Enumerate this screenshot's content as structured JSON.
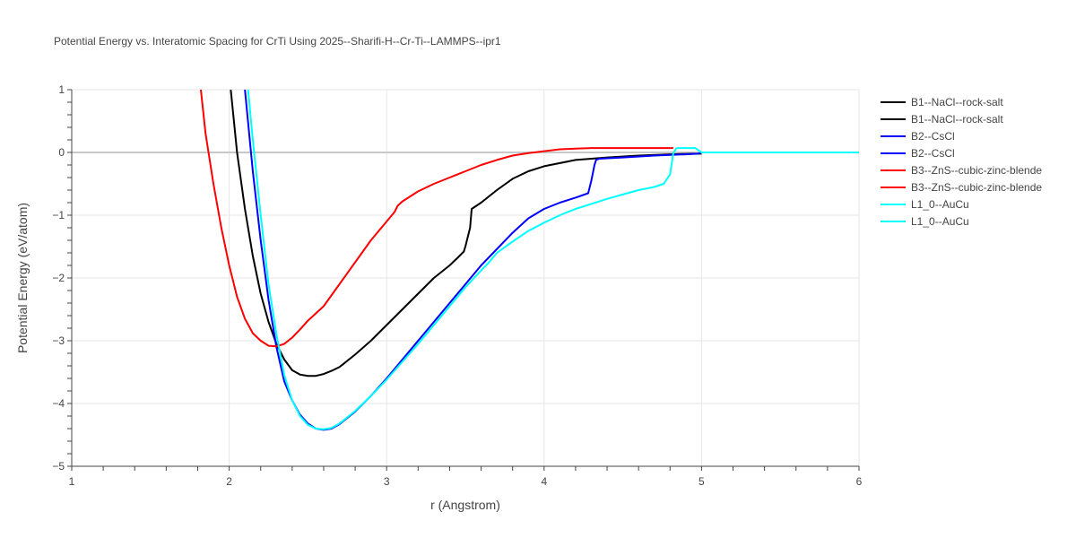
{
  "chart_data": {
    "type": "line",
    "title": "Potential Energy vs. Interatomic Spacing for CrTi Using 2025--Sharifi-H--Cr-Ti--LAMMPS--ipr1",
    "xlabel": "r (Angstrom)",
    "ylabel": "Potential Energy (eV/atom)",
    "xlim": [
      1,
      6
    ],
    "ylim": [
      -5,
      1
    ],
    "xticks": [
      1,
      2,
      3,
      4,
      5,
      6
    ],
    "yticks": [
      1,
      0,
      -1,
      -2,
      -3,
      -4,
      -5
    ],
    "xtick_labels": [
      "1",
      "2",
      "3",
      "4",
      "5",
      "6"
    ],
    "ytick_labels": [
      "1",
      "0",
      "−1",
      "−2",
      "−3",
      "−4",
      "−5"
    ],
    "grid": true,
    "legend_position": "right",
    "series": [
      {
        "name": "B1--NaCl--rock-salt",
        "color": "#000000",
        "x": [
          2.01,
          2.05,
          2.1,
          2.15,
          2.2,
          2.25,
          2.3,
          2.35,
          2.4,
          2.45,
          2.5,
          2.55,
          2.6,
          2.65,
          2.7,
          2.8,
          2.9,
          3.0,
          3.1,
          3.2,
          3.3,
          3.4,
          3.45,
          3.49,
          3.5,
          3.53,
          3.54,
          3.6,
          3.7,
          3.8,
          3.9,
          4.0,
          4.2,
          4.4,
          4.6,
          4.8,
          4.95
        ],
        "y": [
          1.0,
          0.0,
          -0.9,
          -1.65,
          -2.25,
          -2.7,
          -3.05,
          -3.3,
          -3.47,
          -3.54,
          -3.56,
          -3.56,
          -3.53,
          -3.48,
          -3.42,
          -3.22,
          -3.0,
          -2.75,
          -2.5,
          -2.25,
          -2.0,
          -1.8,
          -1.68,
          -1.58,
          -1.5,
          -1.2,
          -0.9,
          -0.8,
          -0.6,
          -0.42,
          -0.3,
          -0.22,
          -0.12,
          -0.08,
          -0.05,
          -0.03,
          -0.02
        ]
      },
      {
        "name": "B1--NaCl--rock-salt",
        "color": "#000000",
        "x": [
          4.95,
          5.0
        ],
        "y": [
          -0.02,
          -0.02
        ]
      },
      {
        "name": "B2--CsCl",
        "color": "#0000ff",
        "x": [
          2.1,
          2.15,
          2.2,
          2.25,
          2.3,
          2.35,
          2.4,
          2.45,
          2.5,
          2.55,
          2.6,
          2.65,
          2.7,
          2.8,
          2.9,
          3.0,
          3.2,
          3.4,
          3.6,
          3.8,
          3.9,
          4.0,
          4.1,
          4.2,
          4.28,
          4.3,
          4.32,
          4.33,
          4.35,
          4.5,
          4.7,
          4.9,
          4.98
        ],
        "y": [
          1.0,
          -0.3,
          -1.4,
          -2.35,
          -3.1,
          -3.65,
          -3.95,
          -4.18,
          -4.32,
          -4.4,
          -4.42,
          -4.4,
          -4.33,
          -4.13,
          -3.88,
          -3.6,
          -3.0,
          -2.4,
          -1.8,
          -1.28,
          -1.05,
          -0.9,
          -0.8,
          -0.72,
          -0.65,
          -0.45,
          -0.2,
          -0.12,
          -0.1,
          -0.08,
          -0.05,
          -0.03,
          -0.02
        ]
      },
      {
        "name": "B2--CsCl",
        "color": "#0000ff",
        "x": [
          4.98,
          5.0
        ],
        "y": [
          -0.02,
          0.0
        ]
      },
      {
        "name": "B3--ZnS--cubic-zinc-blende",
        "color": "#ff0000",
        "x": [
          1.82,
          1.85,
          1.9,
          1.95,
          2.0,
          2.05,
          2.1,
          2.15,
          2.2,
          2.25,
          2.3,
          2.35,
          2.4,
          2.45,
          2.5,
          2.6,
          2.7,
          2.8,
          2.9,
          3.0,
          3.05,
          3.07,
          3.1,
          3.15,
          3.2,
          3.3,
          3.4,
          3.5,
          3.6,
          3.7,
          3.8,
          3.9,
          4.0,
          4.1,
          4.2,
          4.3,
          4.5,
          4.7,
          4.8
        ],
        "y": [
          1.0,
          0.3,
          -0.5,
          -1.2,
          -1.8,
          -2.3,
          -2.65,
          -2.88,
          -3.0,
          -3.08,
          -3.09,
          -3.05,
          -2.95,
          -2.82,
          -2.68,
          -2.45,
          -2.1,
          -1.75,
          -1.4,
          -1.1,
          -0.95,
          -0.85,
          -0.78,
          -0.7,
          -0.62,
          -0.5,
          -0.4,
          -0.3,
          -0.2,
          -0.12,
          -0.05,
          -0.01,
          0.02,
          0.05,
          0.06,
          0.07,
          0.07,
          0.07,
          0.07
        ]
      },
      {
        "name": "B3--ZnS--cubic-zinc-blende",
        "color": "#ff0000",
        "x": [
          4.8,
          4.82
        ],
        "y": [
          0.07,
          0.07
        ]
      },
      {
        "name": "L1_0--AuCu",
        "color": "#00ffff",
        "x": [
          2.12,
          2.15,
          2.2,
          2.25,
          2.3,
          2.35,
          2.4,
          2.45,
          2.5,
          2.55,
          2.6,
          2.65,
          2.7,
          2.8,
          2.9,
          3.0,
          3.2,
          3.4,
          3.5,
          3.6,
          3.65,
          3.7,
          3.8,
          3.9,
          4.0,
          4.1,
          4.2,
          4.3,
          4.4,
          4.5,
          4.6,
          4.7,
          4.76,
          4.8,
          4.82,
          4.84
        ],
        "y": [
          1.0,
          0.2,
          -1.0,
          -2.1,
          -2.9,
          -3.55,
          -3.95,
          -4.2,
          -4.34,
          -4.4,
          -4.41,
          -4.39,
          -4.32,
          -4.12,
          -3.88,
          -3.62,
          -3.05,
          -2.45,
          -2.15,
          -1.88,
          -1.75,
          -1.6,
          -1.42,
          -1.25,
          -1.12,
          -1.0,
          -0.9,
          -0.82,
          -0.74,
          -0.67,
          -0.6,
          -0.55,
          -0.5,
          -0.35,
          -0.02,
          0.07
        ]
      },
      {
        "name": "L1_0--AuCu",
        "color": "#00ffff",
        "x": [
          4.84,
          4.96,
          5.0,
          5.5,
          6.0
        ],
        "y": [
          0.07,
          0.07,
          0.0,
          0.0,
          0.0
        ]
      }
    ]
  }
}
